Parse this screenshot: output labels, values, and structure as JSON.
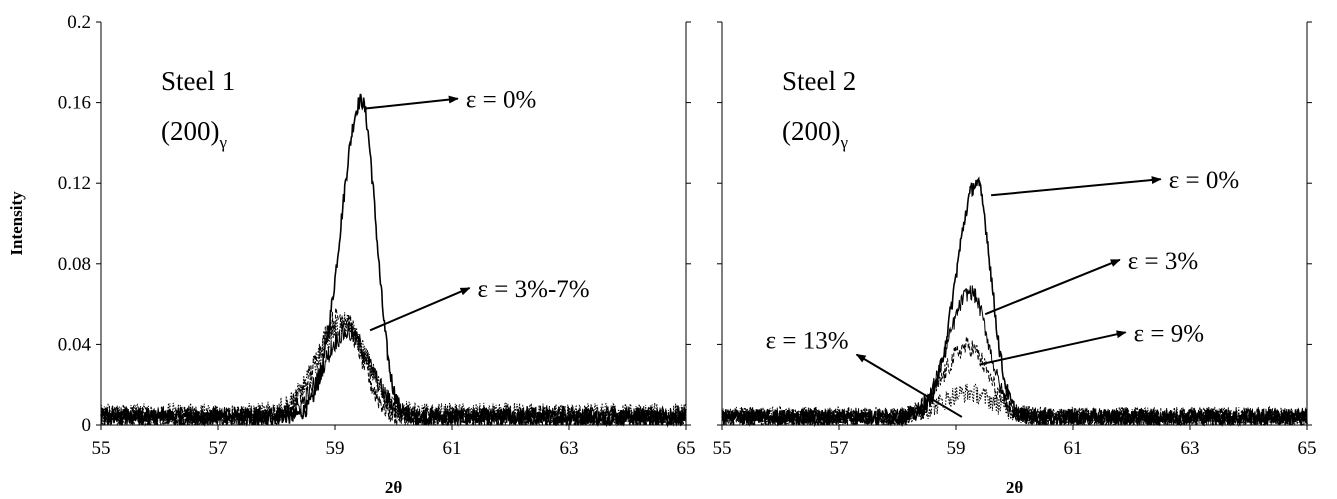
{
  "chart_data": [
    {
      "type": "line",
      "title": "",
      "xlabel": "2θ",
      "ylabel": "Intensity",
      "xlim": [
        55,
        65
      ],
      "ylim": [
        0,
        0.2
      ],
      "x_ticks": [
        "55",
        "57",
        "59",
        "61",
        "63",
        "65"
      ],
      "y_ticks": [
        "0",
        "0.04",
        "0.08",
        "0.12",
        "0.16",
        "0.2"
      ],
      "grid": false,
      "legend": "none",
      "panel_label": {
        "line1": "Steel 1",
        "line2_main": "(200)",
        "line2_sub": "γ"
      },
      "annotations": [
        {
          "text": "ε = 0%",
          "arrow_from": [
            59.5,
            0.157
          ],
          "arrow_to": [
            61.1,
            0.162
          ]
        },
        {
          "text": "ε = 3%-7%",
          "arrow_from": [
            59.6,
            0.047
          ],
          "arrow_to": [
            61.3,
            0.068
          ]
        }
      ],
      "series": [
        {
          "style": "solid",
          "peak_x": 59.45,
          "peak_y": 0.157,
          "sigma_left": 0.35,
          "sigma_right": 0.25,
          "baseline": 0.004,
          "noise": 0.004
        },
        {
          "style": "dashed",
          "peak_x": 59.1,
          "peak_y": 0.05,
          "sigma_left": 0.4,
          "sigma_right": 0.35,
          "baseline": 0.004,
          "noise": 0.006
        },
        {
          "style": "dotted",
          "peak_x": 59.15,
          "peak_y": 0.045,
          "sigma_left": 0.45,
          "sigma_right": 0.4,
          "baseline": 0.005,
          "noise": 0.006
        },
        {
          "style": "solid-thin",
          "peak_x": 59.2,
          "peak_y": 0.042,
          "sigma_left": 0.4,
          "sigma_right": 0.4,
          "baseline": 0.004,
          "noise": 0.005
        }
      ]
    },
    {
      "type": "line",
      "title": "",
      "xlabel": "2θ",
      "ylabel": "",
      "xlim": [
        55,
        65
      ],
      "ylim": [
        0,
        0.2
      ],
      "x_ticks": [
        "55",
        "57",
        "59",
        "61",
        "63",
        "65"
      ],
      "y_ticks": [],
      "grid": false,
      "legend": "none",
      "panel_label": {
        "line1": "Steel 2",
        "line2_main": "(200)",
        "line2_sub": "γ"
      },
      "annotations": [
        {
          "text": "ε = 0%",
          "arrow_from": [
            59.6,
            0.114
          ],
          "arrow_to": [
            62.5,
            0.122
          ]
        },
        {
          "text": "ε = 3%",
          "arrow_from": [
            59.5,
            0.055
          ],
          "arrow_to": [
            61.8,
            0.082
          ]
        },
        {
          "text": "ε = 9%",
          "arrow_from": [
            59.4,
            0.03
          ],
          "arrow_to": [
            61.9,
            0.046
          ]
        },
        {
          "text": "ε = 13%",
          "arrow_from": [
            59.1,
            0.004
          ],
          "arrow_to": [
            57.3,
            0.035
          ]
        }
      ],
      "series": [
        {
          "style": "solid",
          "peak_x": 59.35,
          "peak_y": 0.116,
          "sigma_left": 0.35,
          "sigma_right": 0.25,
          "baseline": 0.004,
          "noise": 0.004
        },
        {
          "style": "solid-thin",
          "peak_x": 59.25,
          "peak_y": 0.062,
          "sigma_left": 0.38,
          "sigma_right": 0.3,
          "baseline": 0.004,
          "noise": 0.004
        },
        {
          "style": "dashed",
          "peak_x": 59.2,
          "peak_y": 0.035,
          "sigma_left": 0.4,
          "sigma_right": 0.35,
          "baseline": 0.004,
          "noise": 0.005
        },
        {
          "style": "dotted",
          "peak_x": 59.2,
          "peak_y": 0.012,
          "sigma_left": 0.45,
          "sigma_right": 0.45,
          "baseline": 0.004,
          "noise": 0.005
        }
      ]
    }
  ]
}
